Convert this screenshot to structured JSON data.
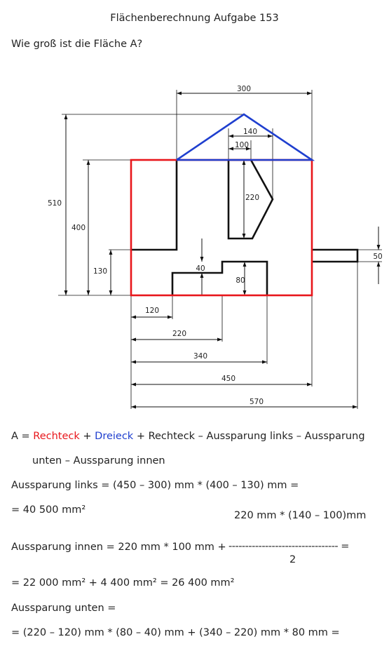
{
  "title": "Flächenberechnung Aufgabe 153",
  "question": "Wie groß ist die Fläche A?",
  "dimensions": {
    "d300": "300",
    "d140": "140",
    "d100": "100",
    "d510": "510",
    "d400": "400",
    "d220v": "220",
    "d130": "130",
    "d40": "40",
    "d80": "80",
    "d50": "50",
    "d120": "120",
    "d220h": "220",
    "d340": "340",
    "d450": "450",
    "d570": "570"
  },
  "colors": {
    "rectangle": "#e8161b",
    "triangle": "#1f3fcf",
    "outline": "#111111"
  },
  "solution": {
    "formula_prefix": "A = ",
    "formula_rechteck": "Rechteck",
    "formula_plus1": " + ",
    "formula_dreieck": "Dreieck",
    "formula_rest": " + Rechteck – Aussparung links – Aussparung",
    "formula_line2": "unten – Aussparung innen",
    "links_line1": "Aussparung links = (450 – 300) mm * (400 – 130) mm =",
    "links_line2": "= 40 500 mm²",
    "innen_numerator": "220 mm * (140 – 100)mm",
    "innen_left": "Aussparung innen = 220 mm * 100 mm + ",
    "innen_bar": "--------------------------------- =",
    "innen_denominator": "2",
    "innen_result": "= 22 000 mm² + 4 400 mm² = 26 400 mm²",
    "unten_line1": "Aussparung unten =",
    "unten_line2": "= (220 – 120) mm * (80 – 40) mm + (340 – 220) mm * 80 mm ="
  }
}
